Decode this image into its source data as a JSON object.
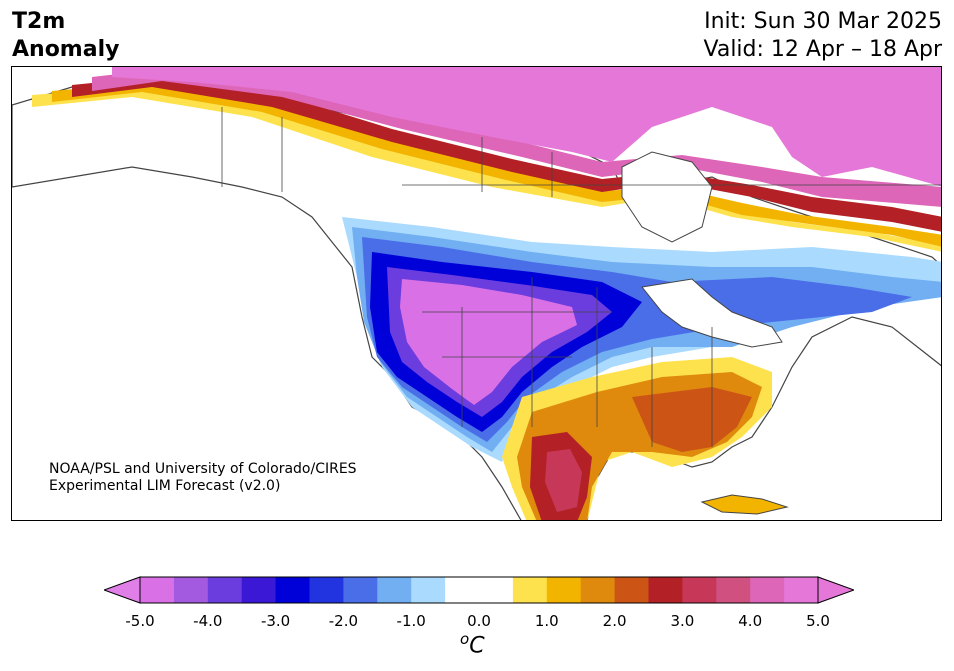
{
  "header": {
    "title_line1": "T2m",
    "title_line2": "Anomaly",
    "init_text": "Init: Sun 30 Mar 2025",
    "valid_text": "Valid: 12 Apr – 18 Apr"
  },
  "map": {
    "credit_line1": "NOAA/PSL and University of Colorado/CIRES",
    "credit_line2": "Experimental LIM Forecast (v2.0)",
    "region": "North America",
    "ocean_color": "#ffffff",
    "border_color": "#444444"
  },
  "colorbar": {
    "tick_labels": [
      "-5.0",
      "-4.0",
      "-3.0",
      "-2.0",
      "-1.0",
      "0.0",
      "1.0",
      "2.0",
      "3.0",
      "4.0",
      "5.0"
    ],
    "unit_label": "C",
    "unit_superscript": "o",
    "extend": "both",
    "colors": [
      "#da70e6",
      "#a35ae0",
      "#6b3ddf",
      "#3a18d6",
      "#0000d8",
      "#2234e0",
      "#4a6ee8",
      "#72aef2",
      "#aadbff",
      "#ffffff",
      "#ffffff",
      "#fde24e",
      "#f3b400",
      "#df8a0c",
      "#cc5516",
      "#b32025",
      "#c73858",
      "#d05080",
      "#dd66b8",
      "#e577d8"
    ]
  }
}
